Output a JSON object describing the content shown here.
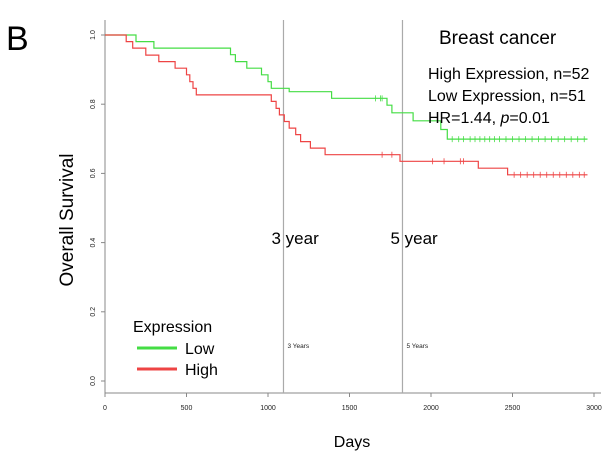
{
  "panel_label": "B",
  "chart_data": {
    "type": "line",
    "title": "Breast cancer",
    "xlabel": "Days",
    "ylabel": "Overall Survival",
    "xlim": [
      0,
      3000
    ],
    "ylim": [
      0,
      1
    ],
    "x_ticks": [
      "0",
      "500",
      "1000",
      "1500",
      "2000",
      "2500",
      "3000"
    ],
    "y_ticks": [
      "0.0",
      "0.2",
      "0.4",
      "0.6",
      "0.8",
      "1.0"
    ],
    "annotations": [
      "High Expression, n=52",
      "Low Expression, n=51",
      "HR=1.44, "
    ],
    "p_label": "p",
    "p_value": "=0.01",
    "legend": {
      "title": "Expression",
      "position": "bottom-left"
    },
    "reference_lines": [
      {
        "x": 1095,
        "label": "3 year",
        "small_label": "3 Years"
      },
      {
        "x": 1825,
        "label": "5 year",
        "small_label": "5 Years"
      }
    ],
    "series": [
      {
        "name": "Low",
        "color": "#44dd44",
        "steps": [
          [
            0,
            1.0
          ],
          [
            190,
            0.981
          ],
          [
            290,
            0.981
          ],
          [
            300,
            0.962
          ],
          [
            420,
            0.962
          ],
          [
            430,
            0.962
          ],
          [
            440,
            0.962
          ],
          [
            760,
            0.962
          ],
          [
            770,
            0.943
          ],
          [
            800,
            0.923
          ],
          [
            870,
            0.904
          ],
          [
            960,
            0.885
          ],
          [
            1000,
            0.865
          ],
          [
            1000,
            0.865
          ],
          [
            1020,
            0.846
          ],
          [
            1100,
            0.846
          ],
          [
            1130,
            0.836
          ],
          [
            1360,
            0.836
          ],
          [
            1390,
            0.817
          ],
          [
            1720,
            0.817
          ],
          [
            1730,
            0.797
          ],
          [
            1760,
            0.775
          ],
          [
            1870,
            0.775
          ],
          [
            1890,
            0.752
          ],
          [
            2040,
            0.752
          ],
          [
            2060,
            0.727
          ],
          [
            2100,
            0.699
          ],
          [
            2960,
            0.699
          ]
        ],
        "censor": [
          1660,
          1690,
          1700,
          2130,
          2170,
          2200,
          2240,
          2270,
          2300,
          2330,
          2360,
          2390,
          2420,
          2460,
          2500,
          2540,
          2580,
          2620,
          2660,
          2700,
          2740,
          2780,
          2820,
          2860,
          2900,
          2940
        ]
      },
      {
        "name": "High",
        "color": "#ee4444",
        "steps": [
          [
            0,
            1.0
          ],
          [
            130,
            0.981
          ],
          [
            170,
            0.962
          ],
          [
            250,
            0.942
          ],
          [
            330,
            0.923
          ],
          [
            430,
            0.904
          ],
          [
            500,
            0.885
          ],
          [
            520,
            0.865
          ],
          [
            540,
            0.846
          ],
          [
            560,
            0.827
          ],
          [
            1000,
            0.827
          ],
          [
            1020,
            0.808
          ],
          [
            1050,
            0.788
          ],
          [
            1070,
            0.769
          ],
          [
            1100,
            0.75
          ],
          [
            1130,
            0.731
          ],
          [
            1170,
            0.712
          ],
          [
            1200,
            0.692
          ],
          [
            1260,
            0.673
          ],
          [
            1350,
            0.654
          ],
          [
            1760,
            0.654
          ],
          [
            1810,
            0.635
          ],
          [
            2280,
            0.635
          ],
          [
            2290,
            0.615
          ],
          [
            2450,
            0.615
          ],
          [
            2470,
            0.596
          ],
          [
            2960,
            0.596
          ]
        ],
        "censor": [
          1700,
          1760,
          2010,
          2080,
          2180,
          2200,
          2510,
          2550,
          2590,
          2630,
          2670,
          2710,
          2750,
          2790,
          2830,
          2870,
          2910,
          2940
        ]
      }
    ]
  }
}
